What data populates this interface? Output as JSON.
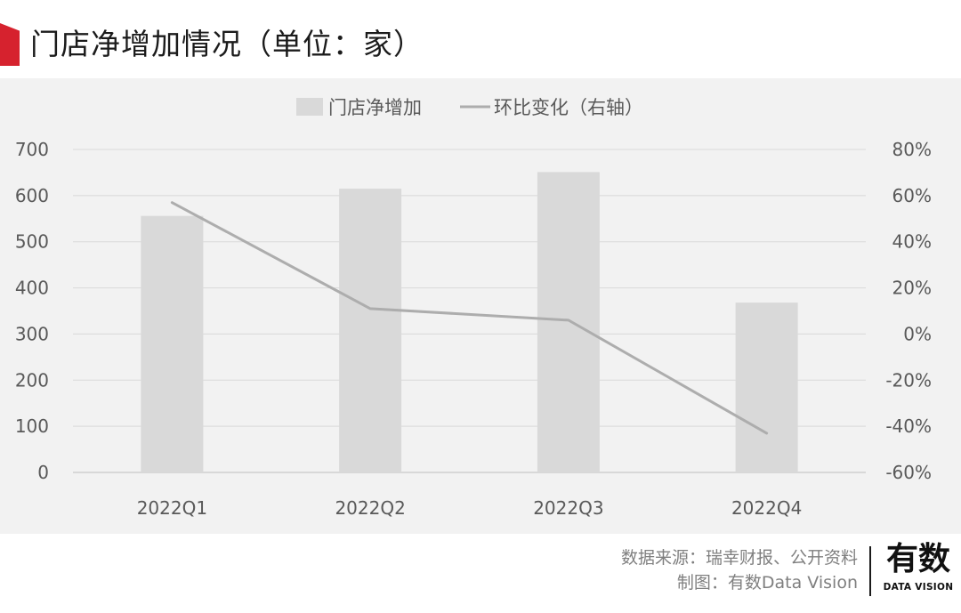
{
  "header": {
    "title": "门店净增加情况（单位：家）"
  },
  "chart_data": {
    "type": "bar",
    "categories": [
      "2022Q1",
      "2022Q2",
      "2022Q3",
      "2022Q4"
    ],
    "series": [
      {
        "name": "门店净增加",
        "type": "bar",
        "axis": "left",
        "values": [
          556,
          615,
          651,
          368
        ],
        "color": "#d9d9d9"
      },
      {
        "name": "环比变化（右轴）",
        "type": "line",
        "axis": "right",
        "values": [
          57,
          11,
          6,
          -43
        ],
        "color": "#adadad"
      }
    ],
    "y_left": {
      "ylim": [
        0,
        700
      ],
      "ticks": [
        "0",
        "100",
        "200",
        "300",
        "400",
        "500",
        "600",
        "700"
      ]
    },
    "y_right": {
      "ylim": [
        -60,
        80
      ],
      "ticks": [
        "-60%",
        "-40%",
        "-20%",
        "0%",
        "20%",
        "40%",
        "60%",
        "80%"
      ]
    },
    "grid": true,
    "legend_position": "top-center"
  },
  "footer": {
    "source": "数据来源：瑞幸财报、公开资料",
    "credit": "制图：有数Data Vision"
  },
  "brand": {
    "name_cn": "有数",
    "name_en": "DATA VISION"
  }
}
